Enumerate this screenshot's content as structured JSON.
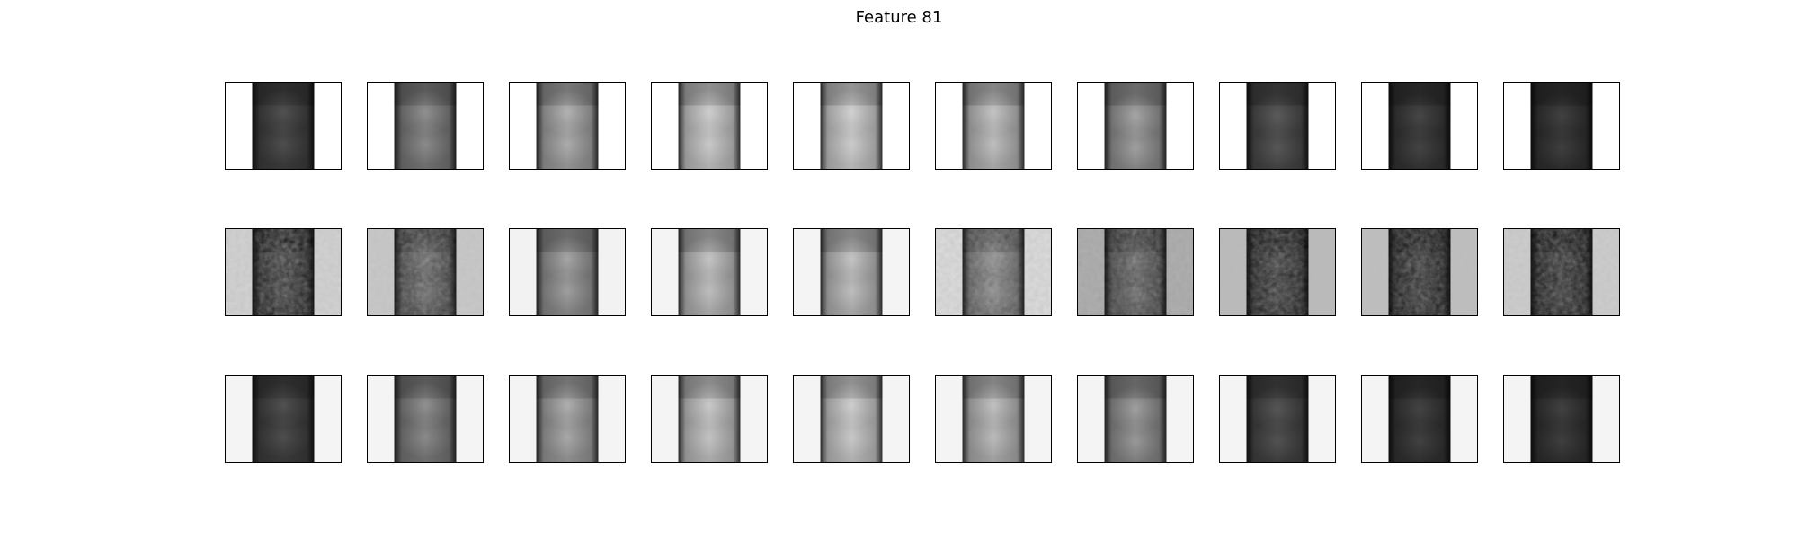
{
  "figure": {
    "title": "Feature 81"
  },
  "rows": [
    {
      "side_shade": [
        255,
        255,
        255,
        255,
        255,
        255,
        255,
        255,
        255,
        255
      ],
      "side_noise": [
        0,
        0,
        0,
        0,
        0,
        0,
        0,
        0,
        0,
        0
      ],
      "core_brightness": [
        0.18,
        0.45,
        0.62,
        0.78,
        0.8,
        0.72,
        0.55,
        0.22,
        0.14,
        0.12
      ],
      "core_noise": [
        0,
        0,
        0,
        0,
        0,
        0,
        0,
        0,
        0,
        0
      ]
    },
    {
      "side_shade": [
        210,
        200,
        242,
        244,
        244,
        220,
        165,
        185,
        190,
        205
      ],
      "side_noise": [
        1,
        1,
        0,
        0,
        0,
        1,
        1,
        1,
        1,
        1
      ],
      "core_brightness": [
        0.14,
        0.3,
        0.55,
        0.72,
        0.72,
        0.45,
        0.28,
        0.12,
        0.1,
        0.1
      ],
      "core_noise": [
        1,
        1,
        0,
        0,
        0,
        1,
        1,
        1,
        1,
        1
      ]
    },
    {
      "side_shade": [
        244,
        244,
        244,
        244,
        244,
        244,
        244,
        244,
        244,
        244
      ],
      "side_noise": [
        0,
        0,
        0,
        0,
        0,
        0,
        0,
        0,
        0,
        0
      ],
      "core_brightness": [
        0.18,
        0.45,
        0.6,
        0.75,
        0.78,
        0.7,
        0.52,
        0.2,
        0.13,
        0.12
      ],
      "core_noise": [
        0,
        0,
        0,
        0,
        0,
        0,
        0,
        0,
        0,
        0
      ]
    }
  ]
}
